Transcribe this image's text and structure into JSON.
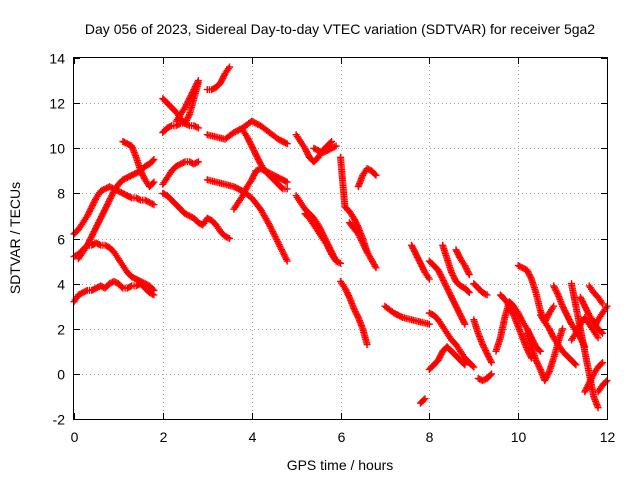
{
  "chart_data": {
    "type": "scatter",
    "title": "Day 056 of 2023, Sidereal Day-to-day VTEC variation (SDTVAR) for receiver 5ga2",
    "xlabel": "GPS time / hours",
    "ylabel": "SDTVAR / TECUs",
    "xlim": [
      0,
      12
    ],
    "ylim": [
      -2,
      14
    ],
    "xticks": [
      0,
      2,
      4,
      6,
      8,
      10,
      12
    ],
    "yticks": [
      -2,
      0,
      2,
      4,
      6,
      8,
      10,
      12,
      14
    ],
    "grid": true,
    "marker": "plus",
    "color": "#ff0000",
    "series": [
      {
        "x": [
          0.0,
          0.1,
          0.2,
          0.3,
          0.4,
          0.5,
          0.6,
          0.7,
          0.8,
          0.9,
          1.0,
          1.1,
          1.2,
          1.3,
          1.4,
          1.5,
          1.6,
          1.7,
          1.8
        ],
        "y": [
          3.2,
          3.5,
          3.6,
          3.7,
          3.7,
          3.8,
          3.9,
          3.8,
          4.0,
          4.1,
          4.0,
          3.8,
          3.8,
          3.9,
          3.9,
          4.0,
          3.8,
          3.6,
          3.5
        ]
      },
      {
        "x": [
          0.0,
          0.1,
          0.2,
          0.3,
          0.4,
          0.5,
          0.6,
          0.7,
          0.8,
          0.9,
          1.0,
          1.1,
          1.2,
          1.3,
          1.4,
          1.5,
          1.6,
          1.7,
          1.8
        ],
        "y": [
          5.2,
          5.3,
          5.5,
          5.7,
          5.7,
          5.8,
          5.7,
          5.7,
          5.6,
          5.4,
          5.1,
          4.8,
          4.5,
          4.3,
          4.2,
          4.1,
          4.0,
          3.9,
          3.7
        ]
      },
      {
        "x": [
          0.0,
          0.1,
          0.2,
          0.3,
          0.4,
          0.5,
          0.6,
          0.7,
          0.8,
          0.9,
          1.0,
          1.1,
          1.2,
          1.3,
          1.4,
          1.5,
          1.6,
          1.7,
          1.8
        ],
        "y": [
          6.2,
          6.4,
          6.7,
          7.0,
          7.4,
          7.8,
          8.1,
          8.2,
          8.3,
          8.2,
          8.1,
          8.0,
          7.9,
          7.8,
          7.8,
          7.7,
          7.7,
          7.6,
          7.5
        ]
      },
      {
        "x": [
          0.1,
          0.2,
          0.3,
          0.4,
          0.5,
          0.6,
          0.7,
          0.8,
          0.9,
          1.0,
          1.1,
          1.2,
          1.3,
          1.4,
          1.5,
          1.6,
          1.7,
          1.8
        ],
        "y": [
          5.1,
          5.4,
          5.7,
          6.1,
          6.5,
          6.9,
          7.3,
          7.7,
          8.1,
          8.4,
          8.6,
          8.7,
          8.8,
          8.9,
          9.0,
          9.2,
          9.3,
          9.5
        ]
      },
      {
        "x": [
          1.1,
          1.2,
          1.3,
          1.4,
          1.5,
          1.6,
          1.7,
          1.8
        ],
        "y": [
          10.3,
          10.2,
          10.1,
          9.6,
          9.0,
          8.6,
          8.3,
          8.5
        ]
      },
      {
        "x": [
          2.0,
          2.1,
          2.2,
          2.3,
          2.4,
          2.5,
          2.6,
          2.7,
          2.8
        ],
        "y": [
          8.4,
          8.7,
          9.0,
          9.2,
          9.3,
          9.4,
          9.4,
          9.3,
          9.4
        ]
      },
      {
        "x": [
          2.0,
          2.1,
          2.2,
          2.3,
          2.4,
          2.5,
          2.6,
          2.7,
          2.8,
          2.9,
          3.0,
          3.1,
          3.2,
          3.3,
          3.4,
          3.5
        ],
        "y": [
          8.0,
          7.9,
          7.7,
          7.5,
          7.3,
          7.1,
          7.0,
          6.9,
          6.7,
          6.6,
          6.9,
          6.8,
          6.6,
          6.3,
          6.1,
          6.0
        ]
      },
      {
        "x": [
          2.0,
          2.1,
          2.2,
          2.3,
          2.4,
          2.5,
          2.6,
          2.7,
          2.8
        ],
        "y": [
          10.7,
          10.9,
          11.0,
          11.0,
          11.1,
          11.1,
          11.0,
          11.0,
          10.9
        ]
      },
      {
        "x": [
          2.0,
          2.1,
          2.2,
          2.3,
          2.4,
          2.5,
          2.6,
          2.7,
          2.8
        ],
        "y": [
          12.2,
          12.0,
          11.8,
          11.6,
          11.3,
          11.1,
          11.5,
          12.2,
          12.9
        ]
      },
      {
        "x": [
          2.3,
          2.4,
          2.5,
          2.6,
          2.7,
          2.8
        ],
        "y": [
          11.2,
          11.5,
          11.8,
          12.2,
          12.6,
          13.0
        ]
      },
      {
        "x": [
          3.0,
          3.1,
          3.2,
          3.3,
          3.4,
          3.5
        ],
        "y": [
          12.6,
          12.6,
          12.7,
          12.9,
          13.3,
          13.6
        ]
      },
      {
        "x": [
          3.0,
          3.2,
          3.4,
          3.6,
          3.8,
          4.0,
          4.2,
          4.4,
          4.6,
          4.8
        ],
        "y": [
          10.6,
          10.5,
          10.4,
          10.7,
          10.9,
          11.2,
          11.0,
          10.7,
          10.4,
          10.2
        ]
      },
      {
        "x": [
          3.0,
          3.2,
          3.4,
          3.6,
          3.8,
          4.0,
          4.2,
          4.4,
          4.6,
          4.8
        ],
        "y": [
          8.6,
          8.5,
          8.4,
          8.3,
          8.1,
          7.8,
          7.3,
          6.6,
          5.8,
          5.0
        ]
      },
      {
        "x": [
          3.6,
          3.7,
          3.8,
          3.9,
          4.0,
          4.1,
          4.2,
          4.3,
          4.4,
          4.5,
          4.6,
          4.7,
          4.8
        ],
        "y": [
          7.3,
          7.6,
          7.9,
          8.3,
          8.6,
          9.0,
          9.1,
          9.0,
          8.9,
          8.8,
          8.7,
          8.6,
          8.5
        ]
      },
      {
        "x": [
          3.8,
          3.9,
          4.0,
          4.1,
          4.2,
          4.3,
          4.4,
          4.5,
          4.6,
          4.7,
          4.8
        ],
        "y": [
          10.8,
          10.5,
          10.1,
          9.7,
          9.3,
          9.0,
          8.8,
          8.6,
          8.4,
          8.2,
          8.2
        ]
      },
      {
        "x": [
          5.0,
          5.1,
          5.2,
          5.3,
          5.4,
          5.5,
          5.6,
          5.7,
          5.8,
          5.9,
          6.0
        ],
        "y": [
          7.9,
          7.6,
          7.3,
          7.1,
          6.9,
          6.6,
          6.2,
          5.8,
          5.4,
          5.0,
          4.9
        ]
      },
      {
        "x": [
          5.0,
          5.1,
          5.2,
          5.3,
          5.4,
          5.5,
          5.6,
          5.7,
          5.8
        ],
        "y": [
          10.6,
          10.3,
          10.0,
          9.6,
          9.4,
          9.6,
          9.9,
          10.1,
          10.3
        ]
      },
      {
        "x": [
          5.2,
          5.3,
          5.4,
          5.5,
          5.6,
          5.7,
          5.8,
          5.9
        ],
        "y": [
          7.1,
          6.9,
          6.6,
          6.3,
          6.0,
          5.7,
          5.3,
          5.0
        ]
      },
      {
        "x": [
          5.4,
          5.5,
          5.6,
          5.7,
          5.8,
          5.9
        ],
        "y": [
          10.0,
          9.9,
          9.8,
          9.9,
          10.0,
          10.1
        ]
      },
      {
        "x": [
          6.0,
          6.1,
          6.2,
          6.3,
          6.4,
          6.5,
          6.6
        ],
        "y": [
          9.6,
          7.4,
          7.2,
          6.9,
          6.5,
          6.0,
          5.4
        ]
      },
      {
        "x": [
          6.0,
          6.1,
          6.2,
          6.3,
          6.4,
          6.5,
          6.6
        ],
        "y": [
          4.1,
          3.8,
          3.4,
          2.9,
          2.5,
          2.0,
          1.3
        ]
      },
      {
        "x": [
          6.4,
          6.5,
          6.6,
          6.7,
          6.8
        ],
        "y": [
          8.3,
          8.8,
          9.1,
          9.0,
          8.8
        ]
      },
      {
        "x": [
          6.2,
          6.4,
          6.6,
          6.8
        ],
        "y": [
          6.7,
          6.2,
          5.4,
          4.7
        ]
      },
      {
        "x": [
          7.0,
          7.2,
          7.4,
          7.6,
          7.8,
          8.0
        ],
        "y": [
          3.0,
          2.7,
          2.5,
          2.4,
          2.3,
          2.2
        ]
      },
      {
        "x": [
          7.6,
          7.7,
          7.8,
          7.9,
          8.0
        ],
        "y": [
          5.7,
          5.3,
          4.9,
          4.5,
          4.2
        ]
      },
      {
        "x": [
          7.8,
          7.9
        ],
        "y": [
          -1.3,
          -1.1
        ]
      },
      {
        "x": [
          8.0,
          8.1,
          8.2,
          8.3,
          8.4,
          8.5,
          8.6,
          8.7,
          8.8,
          8.9,
          9.0
        ],
        "y": [
          2.7,
          2.6,
          2.4,
          2.1,
          1.8,
          1.5,
          1.3,
          1.0,
          0.7,
          0.5,
          0.3
        ]
      },
      {
        "x": [
          8.0,
          8.1,
          8.2,
          8.3,
          8.4,
          8.5,
          8.6,
          8.7,
          8.8
        ],
        "y": [
          5.0,
          4.8,
          4.6,
          4.2,
          3.8,
          3.4,
          3.0,
          2.6,
          2.2
        ]
      },
      {
        "x": [
          8.0,
          8.1,
          8.2,
          8.3,
          8.4,
          8.5,
          8.6,
          8.7,
          8.8
        ],
        "y": [
          0.2,
          0.4,
          0.6,
          1.0,
          1.2,
          1.0,
          0.8,
          0.6,
          0.4
        ]
      },
      {
        "x": [
          8.3,
          8.4,
          8.5,
          8.6,
          8.7,
          8.8,
          8.9
        ],
        "y": [
          5.7,
          5.1,
          4.5,
          4.1,
          3.9,
          3.8,
          3.6
        ]
      },
      {
        "x": [
          8.6,
          8.7,
          8.8,
          8.9
        ],
        "y": [
          5.5,
          5.1,
          4.8,
          4.4
        ]
      },
      {
        "x": [
          9.0,
          9.1,
          9.2,
          9.3,
          9.4
        ],
        "y": [
          2.4,
          1.8,
          1.3,
          0.9,
          0.5
        ]
      },
      {
        "x": [
          9.0,
          9.1,
          9.2,
          9.3
        ],
        "y": [
          4.0,
          3.8,
          3.6,
          3.5
        ]
      },
      {
        "x": [
          9.1,
          9.2,
          9.3,
          9.4
        ],
        "y": [
          -0.2,
          -0.3,
          -0.2,
          0.0
        ]
      },
      {
        "x": [
          9.5,
          9.6,
          9.7,
          9.8,
          9.9,
          10.0,
          10.1,
          10.2,
          10.3,
          10.4,
          10.5
        ],
        "y": [
          1.0,
          1.6,
          2.5,
          3.2,
          3.0,
          2.7,
          2.3,
          2.0,
          1.6,
          1.2,
          1.0
        ]
      },
      {
        "x": [
          9.6,
          9.7,
          9.8,
          9.9,
          10.0,
          10.1,
          10.2,
          10.3
        ],
        "y": [
          3.5,
          3.3,
          3.0,
          2.6,
          2.1,
          1.6,
          1.1,
          0.7
        ]
      },
      {
        "x": [
          10.0,
          10.1,
          10.2,
          10.3,
          10.4,
          10.5,
          10.6,
          10.7,
          10.8
        ],
        "y": [
          4.8,
          4.7,
          4.6,
          4.2,
          3.6,
          2.8,
          2.3,
          2.7,
          3.0
        ]
      },
      {
        "x": [
          10.2,
          10.3,
          10.4,
          10.5,
          10.6,
          10.7,
          10.8,
          10.9,
          11.0
        ],
        "y": [
          1.8,
          1.2,
          0.6,
          0.2,
          -0.3,
          0.1,
          0.7,
          1.4,
          2.0
        ]
      },
      {
        "x": [
          10.5,
          10.6,
          10.7,
          10.8,
          10.9,
          11.0,
          11.1,
          11.2,
          11.3
        ],
        "y": [
          2.6,
          2.3,
          2.0,
          1.6,
          1.3,
          1.0,
          0.8,
          0.6,
          0.4
        ]
      },
      {
        "x": [
          10.8,
          10.9,
          11.0,
          11.1,
          11.2,
          11.3,
          11.4,
          11.5
        ],
        "y": [
          3.9,
          3.5,
          3.0,
          2.6,
          2.2,
          1.9,
          1.6,
          1.2
        ]
      },
      {
        "x": [
          11.2,
          11.3,
          11.4,
          11.5,
          11.6,
          11.7,
          11.8
        ],
        "y": [
          4.0,
          3.0,
          2.0,
          1.0,
          0.0,
          -1.0,
          -1.5
        ]
      },
      {
        "x": [
          11.2,
          11.3,
          11.4,
          11.5,
          11.6,
          11.7,
          11.8
        ],
        "y": [
          1.5,
          1.8,
          2.2,
          2.5,
          2.2,
          1.9,
          1.6
        ]
      },
      {
        "x": [
          11.4,
          11.5,
          11.6,
          11.7,
          11.8,
          11.9
        ],
        "y": [
          3.4,
          3.0,
          2.6,
          2.3,
          2.0,
          1.8
        ]
      },
      {
        "x": [
          11.5,
          11.6,
          11.7,
          11.8,
          11.9
        ],
        "y": [
          -0.8,
          -0.4,
          0.0,
          0.3,
          0.5
        ]
      },
      {
        "x": [
          11.6,
          11.7,
          11.8,
          11.9
        ],
        "y": [
          3.9,
          3.6,
          3.4,
          3.1
        ]
      },
      {
        "x": [
          11.7,
          11.8,
          11.9,
          12.0
        ],
        "y": [
          2.0,
          2.4,
          2.7,
          3.0
        ]
      },
      {
        "x": [
          11.8,
          11.9,
          12.0
        ],
        "y": [
          -0.8,
          -0.5,
          -0.3
        ]
      }
    ]
  }
}
